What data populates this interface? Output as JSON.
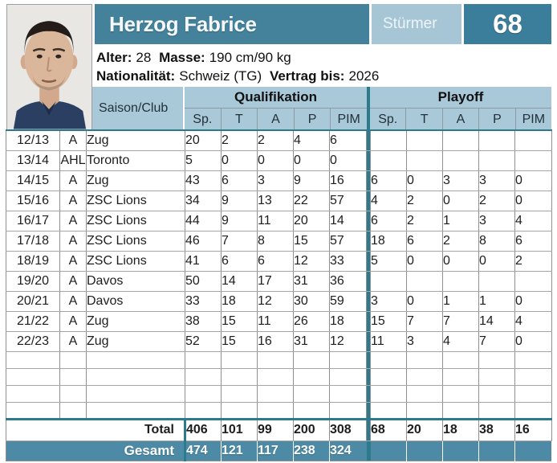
{
  "player": {
    "name": "Herzog Fabrice",
    "position": "Stürmer",
    "number": "68",
    "info": {
      "alter_label": "Alter:",
      "alter_value": "28",
      "masse_label": "Masse:",
      "masse_value": "190 cm/90 kg",
      "nationalitaet_label": "Nationalität:",
      "nationalitaet_value": "Schweiz (TG)",
      "vertrag_label": "Vertrag bis:",
      "vertrag_value": "2026"
    }
  },
  "table": {
    "header": {
      "season_club": "Saison/Club",
      "group_qualifikation": "Qualifikation",
      "group_playoff": "Playoff",
      "stat_columns": [
        "Sp.",
        "T",
        "A",
        "P",
        "PIM"
      ]
    },
    "rows": [
      {
        "season": "12/13",
        "league": "A",
        "club": "Zug",
        "quali": [
          "20",
          "2",
          "2",
          "4",
          "6"
        ],
        "playoff": [
          "",
          "",
          "",
          "",
          ""
        ]
      },
      {
        "season": "13/14",
        "league": "AHL",
        "club": "Toronto",
        "quali": [
          "5",
          "0",
          "0",
          "0",
          "0"
        ],
        "playoff": [
          "",
          "",
          "",
          "",
          ""
        ]
      },
      {
        "season": "14/15",
        "league": "A",
        "club": "Zug",
        "quali": [
          "43",
          "6",
          "3",
          "9",
          "16"
        ],
        "playoff": [
          "6",
          "0",
          "3",
          "3",
          "0"
        ]
      },
      {
        "season": "15/16",
        "league": "A",
        "club": "ZSC Lions",
        "quali": [
          "34",
          "9",
          "13",
          "22",
          "57"
        ],
        "playoff": [
          "4",
          "2",
          "0",
          "2",
          "0"
        ]
      },
      {
        "season": "16/17",
        "league": "A",
        "club": "ZSC Lions",
        "quali": [
          "44",
          "9",
          "11",
          "20",
          "14"
        ],
        "playoff": [
          "6",
          "2",
          "1",
          "3",
          "4"
        ]
      },
      {
        "season": "17/18",
        "league": "A",
        "club": "ZSC Lions",
        "quali": [
          "46",
          "7",
          "8",
          "15",
          "57"
        ],
        "playoff": [
          "18",
          "6",
          "2",
          "8",
          "6"
        ]
      },
      {
        "season": "18/19",
        "league": "A",
        "club": "ZSC Lions",
        "quali": [
          "41",
          "6",
          "6",
          "12",
          "33"
        ],
        "playoff": [
          "5",
          "0",
          "0",
          "0",
          "2"
        ]
      },
      {
        "season": "19/20",
        "league": "A",
        "club": "Davos",
        "quali": [
          "50",
          "14",
          "17",
          "31",
          "36"
        ],
        "playoff": [
          "",
          "",
          "",
          "",
          ""
        ]
      },
      {
        "season": "20/21",
        "league": "A",
        "club": "Davos",
        "quali": [
          "33",
          "18",
          "12",
          "30",
          "59"
        ],
        "playoff": [
          "3",
          "0",
          "1",
          "1",
          "0"
        ]
      },
      {
        "season": "21/22",
        "league": "A",
        "club": "Zug",
        "quali": [
          "38",
          "15",
          "11",
          "26",
          "18"
        ],
        "playoff": [
          "15",
          "7",
          "7",
          "14",
          "4"
        ]
      },
      {
        "season": "22/23",
        "league": "A",
        "club": "Zug",
        "quali": [
          "52",
          "15",
          "16",
          "31",
          "12"
        ],
        "playoff": [
          "11",
          "3",
          "4",
          "7",
          "0"
        ]
      }
    ],
    "empty_row_count": 4,
    "total": {
      "label": "Total",
      "quali": [
        "406",
        "101",
        "99",
        "200",
        "308"
      ],
      "playoff": [
        "68",
        "20",
        "18",
        "38",
        "16"
      ]
    },
    "gesamt": {
      "label": "Gesamt",
      "quali": [
        "474",
        "121",
        "117",
        "238",
        "324"
      ],
      "playoff": [
        "",
        "",
        "",
        "",
        ""
      ]
    }
  },
  "colors": {
    "teal_bar": "#44829c",
    "teal_number_box": "#3b7e9b",
    "light_blue_header": "#a9c8d8",
    "position_badge": "#a6c6d6",
    "separator_teal": "#2d7a8c",
    "gesamt_row": "#4d8aa5"
  }
}
